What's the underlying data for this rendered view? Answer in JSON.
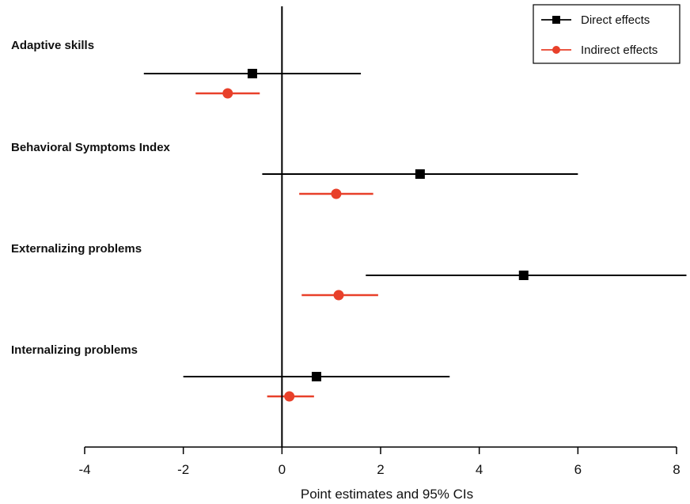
{
  "chart_data": {
    "type": "scatter",
    "title": "",
    "xlabel": "Point estimates and 95% CIs",
    "ylabel": "",
    "xlim": [
      -4,
      8
    ],
    "xticks": [
      -4,
      -2,
      0,
      2,
      4,
      6,
      8
    ],
    "reference_line_x": 0,
    "grid": false,
    "legend_position": "top-right",
    "categories": [
      "Adaptive skills",
      "Behavioral Symptoms Index",
      "Externalizing problems",
      "Internalizing problems"
    ],
    "series": [
      {
        "name": "Direct effects",
        "color": "#000000",
        "marker": "square",
        "estimates": [
          -0.6,
          2.8,
          4.9,
          0.7
        ],
        "ci_low": [
          -2.8,
          -0.4,
          1.7,
          -2.0
        ],
        "ci_high": [
          1.6,
          6.0,
          8.2,
          3.4
        ]
      },
      {
        "name": "Indirect effects",
        "color": "#e8402a",
        "marker": "circle",
        "estimates": [
          -1.1,
          1.1,
          1.15,
          0.15
        ],
        "ci_low": [
          -1.75,
          0.35,
          0.4,
          -0.3
        ],
        "ci_high": [
          -0.45,
          1.85,
          1.95,
          0.65
        ]
      }
    ]
  }
}
